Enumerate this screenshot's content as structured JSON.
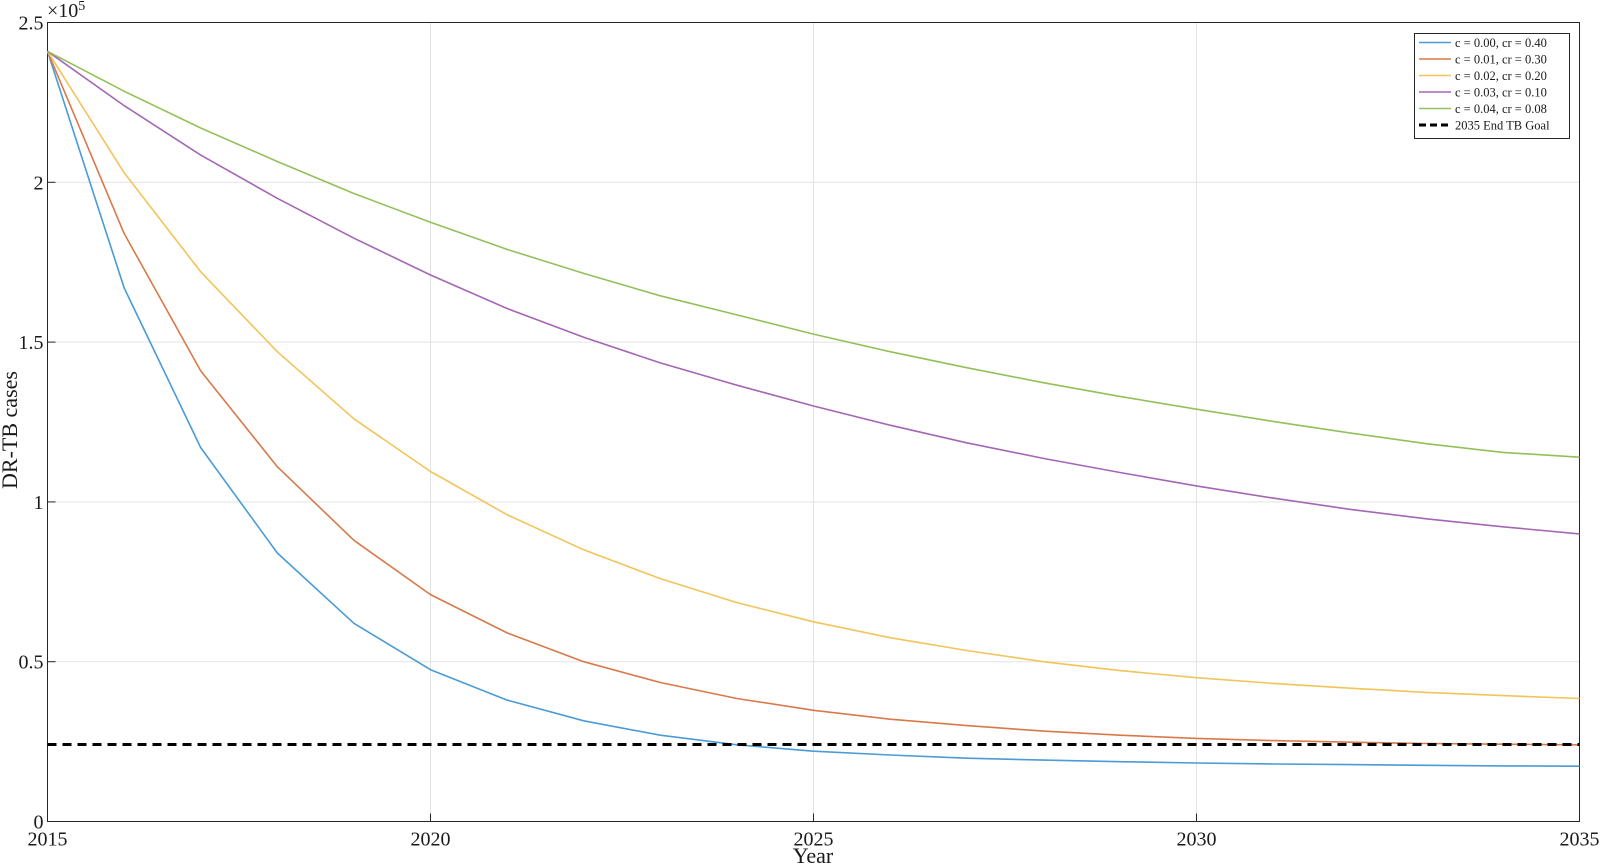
{
  "chart_data": {
    "type": "line",
    "xlabel": "Year",
    "ylabel": "DR-TB cases",
    "y_exponent": "×10",
    "y_exponent_power": "5",
    "xlim": [
      2015,
      2035
    ],
    "ylim": [
      0,
      250000
    ],
    "xticks": [
      2015,
      2020,
      2025,
      2030,
      2035
    ],
    "xtick_labels": [
      "2015",
      "2020",
      "2025",
      "2030",
      "2035"
    ],
    "yticks": [
      0,
      50000,
      100000,
      150000,
      200000,
      250000
    ],
    "ytick_labels": [
      "0",
      "0.5",
      "1",
      "1.5",
      "2",
      "2.5"
    ],
    "grid": true,
    "legend_position": "top-right",
    "x": [
      2015,
      2016,
      2017,
      2018,
      2019,
      2020,
      2021,
      2022,
      2023,
      2024,
      2025,
      2026,
      2027,
      2028,
      2029,
      2030,
      2031,
      2032,
      2033,
      2034,
      2035
    ],
    "series": [
      {
        "name": "c = 0.00, cr = 0.40",
        "color": "#4a9bd6",
        "style": "solid",
        "values": [
          241000,
          167000,
          117000,
          84000,
          62000,
          47500,
          38000,
          31500,
          27000,
          24000,
          22000,
          20800,
          19800,
          19200,
          18700,
          18300,
          18000,
          17800,
          17600,
          17400,
          17300
        ]
      },
      {
        "name": "c = 0.01, cr = 0.30",
        "color": "#d9794a",
        "style": "solid",
        "values": [
          241000,
          184000,
          141000,
          111000,
          88000,
          71000,
          59000,
          50000,
          43500,
          38500,
          34800,
          32000,
          30000,
          28300,
          27000,
          26000,
          25300,
          24800,
          24400,
          24200,
          24000
        ]
      },
      {
        "name": "c = 0.02, cr = 0.20",
        "color": "#f2c45a",
        "style": "solid",
        "values": [
          241000,
          203000,
          172000,
          147000,
          126000,
          109500,
          96000,
          85000,
          76000,
          68500,
          62500,
          57500,
          53500,
          50000,
          47200,
          45000,
          43200,
          41700,
          40400,
          39400,
          38500
        ]
      },
      {
        "name": "c = 0.03, cr = 0.10",
        "color": "#a566b5",
        "style": "solid",
        "values": [
          241000,
          224000,
          208500,
          195000,
          182500,
          171000,
          160500,
          151500,
          143500,
          136500,
          130000,
          124000,
          118500,
          113600,
          109200,
          105000,
          101200,
          97700,
          94700,
          92200,
          90000
        ]
      },
      {
        "name": "c = 0.04, cr = 0.08",
        "color": "#92c15a",
        "style": "solid",
        "values": [
          241000,
          228500,
          217000,
          206500,
          196500,
          187500,
          179000,
          171500,
          164500,
          158500,
          152500,
          147000,
          142000,
          137300,
          133000,
          129000,
          125200,
          121600,
          118200,
          115500,
          114000
        ]
      },
      {
        "name": "2035 End TB Goal",
        "color": "#000000",
        "style": "dashed",
        "values": [
          24100,
          24100,
          24100,
          24100,
          24100,
          24100,
          24100,
          24100,
          24100,
          24100,
          24100,
          24100,
          24100,
          24100,
          24100,
          24100,
          24100,
          24100,
          24100,
          24100,
          24100
        ]
      }
    ]
  }
}
